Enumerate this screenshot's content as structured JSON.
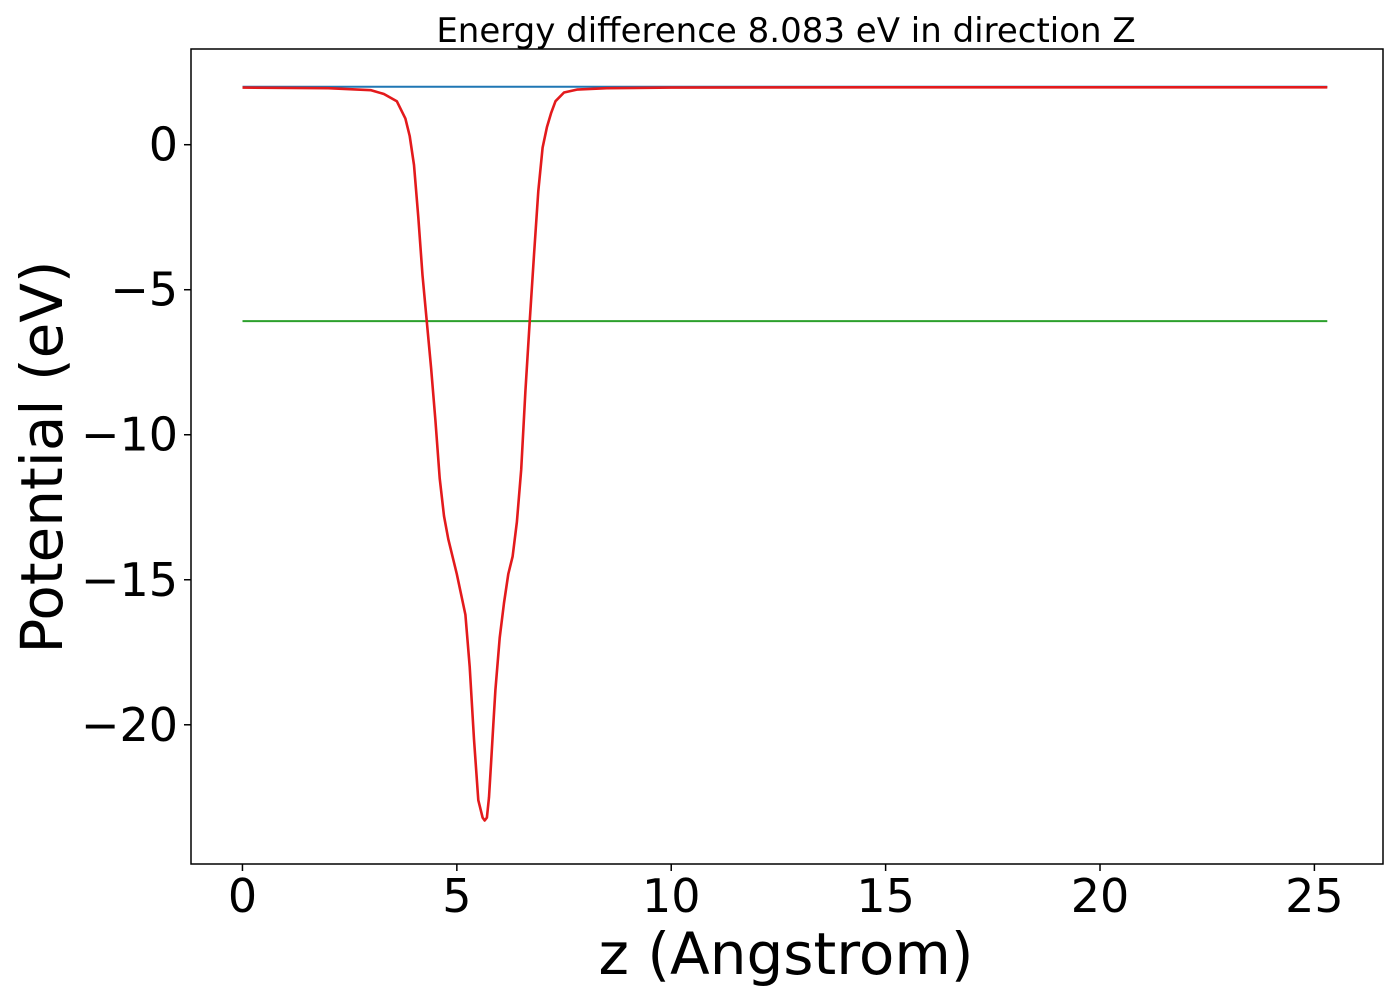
{
  "chart_data": {
    "type": "line",
    "title": "Energy difference 8.083 eV in direction Z",
    "xlabel": "z (Angstrom)",
    "ylabel": "Potential (eV)",
    "xlim": [
      -1.2,
      26.6
    ],
    "ylim": [
      -24.8,
      3.3
    ],
    "xticks": [
      0,
      5,
      10,
      15,
      20,
      25
    ],
    "yticks": [
      0,
      -5,
      -10,
      -15,
      -20
    ],
    "grid": false,
    "legend": "none",
    "series": [
      {
        "color": "#1f77b4",
        "x": [
          0,
          25.3
        ],
        "y": [
          2.0,
          2.0
        ]
      },
      {
        "color": "#2ca02c",
        "x": [
          0,
          25.3
        ],
        "y": [
          -6.08,
          -6.08
        ]
      },
      {
        "color": "#e31a1c",
        "x": [
          0,
          2.0,
          3.0,
          3.3,
          3.6,
          3.8,
          3.9,
          4.0,
          4.1,
          4.2,
          4.3,
          4.4,
          4.5,
          4.6,
          4.7,
          4.8,
          5.0,
          5.2,
          5.3,
          5.4,
          5.5,
          5.6,
          5.65,
          5.7,
          5.75,
          5.8,
          5.85,
          5.9,
          6.0,
          6.1,
          6.2,
          6.3,
          6.4,
          6.5,
          6.6,
          6.7,
          6.8,
          6.9,
          7.0,
          7.1,
          7.2,
          7.3,
          7.5,
          7.8,
          8.5,
          10,
          15,
          20,
          25.3
        ],
        "y": [
          1.97,
          1.95,
          1.88,
          1.75,
          1.5,
          0.9,
          0.3,
          -0.7,
          -2.5,
          -4.5,
          -6.1,
          -7.7,
          -9.5,
          -11.5,
          -12.8,
          -13.6,
          -14.8,
          -16.2,
          -18.0,
          -20.5,
          -22.6,
          -23.2,
          -23.3,
          -23.2,
          -22.5,
          -21.3,
          -20.0,
          -18.8,
          -17.0,
          -15.8,
          -14.8,
          -14.2,
          -13.0,
          -11.2,
          -8.5,
          -6.1,
          -3.8,
          -1.6,
          -0.1,
          0.6,
          1.1,
          1.5,
          1.8,
          1.9,
          1.95,
          1.97,
          1.98,
          1.98,
          1.98
        ]
      }
    ]
  }
}
